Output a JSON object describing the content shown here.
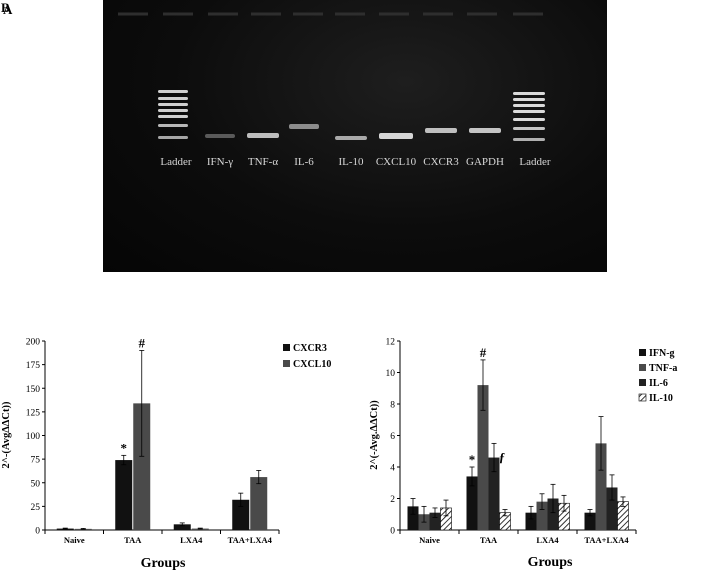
{
  "panel_letters": [
    "B",
    "A"
  ],
  "gel": {
    "lanes": [
      "Ladder",
      "IFN-γ",
      "TNF-α",
      "IL-6",
      "IL-10",
      "CXCL10",
      "CXCR3",
      "GAPDH",
      "Ladder"
    ]
  },
  "chart_data": [
    {
      "type": "bar",
      "categories": [
        "Naive",
        "TAA",
        "LXA4",
        "TAA+LXA4"
      ],
      "series": [
        {
          "name": "CXCR3",
          "values": [
            1.5,
            74,
            6,
            32
          ],
          "errors": [
            0.5,
            5,
            1.5,
            7
          ],
          "color": "#111111",
          "pattern": false
        },
        {
          "name": "CXCL10",
          "values": [
            1.2,
            134,
            1.5,
            56
          ],
          "errors": [
            0.5,
            56,
            0.5,
            7
          ],
          "color": "#4a4a4a",
          "pattern": false
        }
      ],
      "title": "",
      "xlabel": "Groups",
      "ylabel": "2^-(AvgΔΔCt))",
      "ylim": [
        0,
        200
      ],
      "yticks": [
        "0",
        "25",
        "50",
        "75",
        "100",
        "125",
        "150",
        "175",
        "200"
      ],
      "annotations": [
        {
          "text": "*",
          "category": "TAA",
          "series": 0
        },
        {
          "text": "#",
          "category": "TAA",
          "series": 1
        }
      ],
      "legend": "top-right"
    },
    {
      "type": "bar",
      "categories": [
        "Naive",
        "TAA",
        "LXA4",
        "TAA+LXA4"
      ],
      "series": [
        {
          "name": "IFN-g",
          "values": [
            1.5,
            3.4,
            1.1,
            1.1
          ],
          "errors": [
            0.5,
            0.6,
            0.4,
            0.2
          ],
          "color": "#111111",
          "pattern": false
        },
        {
          "name": "TNF-a",
          "values": [
            1.0,
            9.2,
            1.8,
            5.5
          ],
          "errors": [
            0.5,
            1.6,
            0.5,
            1.7
          ],
          "color": "#4a4a4a",
          "pattern": false
        },
        {
          "name": "IL-6",
          "values": [
            1.1,
            4.6,
            2.0,
            2.7
          ],
          "errors": [
            0.3,
            0.9,
            0.9,
            0.8
          ],
          "color": "#222222",
          "pattern": false
        },
        {
          "name": "IL-10",
          "values": [
            1.4,
            1.1,
            1.7,
            1.8
          ],
          "errors": [
            0.5,
            0.2,
            0.5,
            0.3
          ],
          "color": "#ffffff",
          "pattern": true
        }
      ],
      "title": "",
      "xlabel": "Groups",
      "ylabel": "2^(-Avg.ΔΔCt))",
      "ylim": [
        0,
        12
      ],
      "yticks": [
        "0",
        "2",
        "4",
        "6",
        "8",
        "10",
        "12"
      ],
      "annotations": [
        {
          "text": "*",
          "category": "TAA",
          "series": 0
        },
        {
          "text": "#",
          "category": "TAA",
          "series": 1
        },
        {
          "text": "ƒ",
          "category": "TAA",
          "series": 2
        }
      ],
      "legend": "top-right"
    }
  ]
}
